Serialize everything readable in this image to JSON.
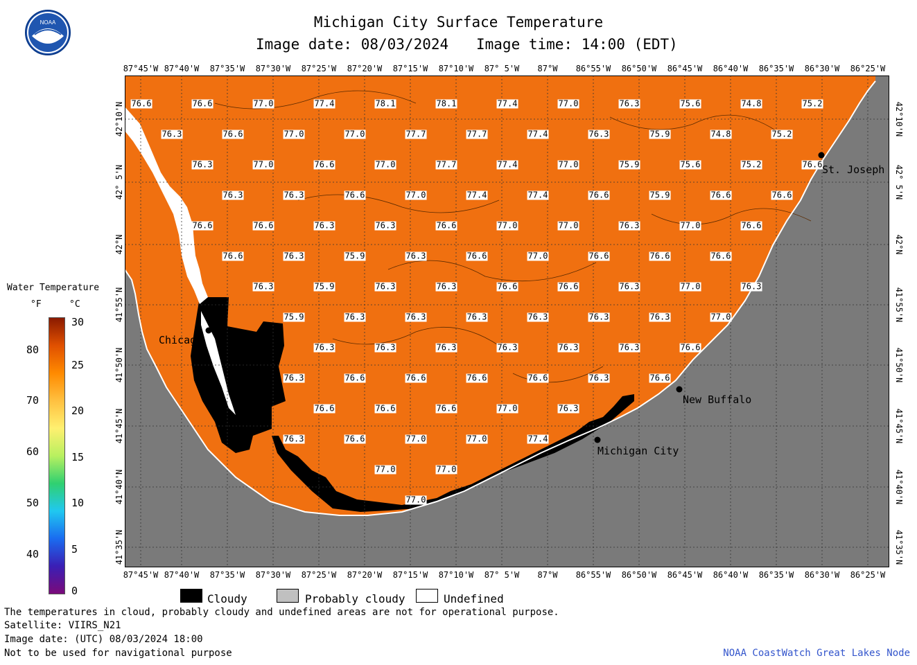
{
  "title": "Michigan City Surface Temperature",
  "image_date_line": "Image date: 08/03/2024",
  "image_time_line": "Image time: 14:00 (EDT)",
  "logo_text": "NOAA",
  "lon_labels": [
    "87°45'W",
    "87°40'W",
    "87°35'W",
    "87°30'W",
    "87°25'W",
    "87°20'W",
    "87°15'W",
    "87°10'W",
    "87° 5'W",
    "87°W",
    "86°55'W",
    "86°50'W",
    "86°45'W",
    "86°40'W",
    "86°35'W",
    "86°30'W",
    "86°25'W"
  ],
  "lat_labels": [
    "42°10'N",
    "42° 5'N",
    "42°N",
    "41°55'N",
    "41°50'N",
    "41°45'N",
    "41°40'N",
    "41°35'N"
  ],
  "cities": {
    "chicago": "Chicago",
    "st_joseph": "St. Joseph",
    "new_buffalo": "New Buffalo",
    "michigan_city": "Michigan City"
  },
  "legend": {
    "title": "Water Temperature",
    "unit_f": "°F",
    "unit_c": "°C",
    "f_ticks": [
      "80",
      "70",
      "60",
      "50",
      "40"
    ],
    "c_ticks": [
      "30",
      "25",
      "20",
      "15",
      "10",
      "5",
      "0"
    ],
    "gradient": [
      "#7a0a7a",
      "#3a1fb5",
      "#1a6cf0",
      "#20c8f0",
      "#30d070",
      "#b8f060",
      "#fff070",
      "#ffc040",
      "#ff8a00",
      "#e05000",
      "#8a1a00"
    ]
  },
  "cloud_legend": {
    "cloudy": "Cloudy",
    "probably_cloudy": "Probably cloudy",
    "undefined": "Undefined"
  },
  "colors": {
    "water": "#f07010",
    "land": "#7a7a7a",
    "cloud": "#000000",
    "undefined": "#ffffff",
    "credit": "#3355cc"
  },
  "footer": {
    "note": "The temperatures in cloud, probably cloudy and undefined areas are not for operational purpose.",
    "satellite": "Satellite: VIIRS_N21",
    "utc_date": "Image date: (UTC) 08/03/2024  18:00",
    "nav_warning": "Not to be used for navigational purpose",
    "credit": "NOAA CoastWatch Great Lakes Node"
  },
  "temp_rows": [
    [
      "76.6",
      "76.6",
      "77.0",
      "77.4",
      "78.1",
      "78.1",
      "77.4",
      "77.0",
      "76.3",
      "75.6",
      "74.8",
      "75.2"
    ],
    [
      "76.3",
      "76.6",
      "77.0",
      "77.0",
      "77.7",
      "77.7",
      "77.4",
      "76.3",
      "75.9",
      "74.8",
      "75.2"
    ],
    [
      "76.3",
      "77.0",
      "76.6",
      "77.0",
      "77.7",
      "77.4",
      "77.0",
      "75.9",
      "75.6",
      "75.2",
      "76.6"
    ],
    [
      "76.3",
      "76.3",
      "76.6",
      "77.0",
      "77.4",
      "77.4",
      "76.6",
      "75.9",
      "76.6",
      "76.6"
    ],
    [
      "76.6",
      "76.6",
      "76.3",
      "76.3",
      "76.6",
      "77.0",
      "77.0",
      "76.3",
      "77.0",
      "76.6"
    ],
    [
      "76.6",
      "76.3",
      "75.9",
      "76.3",
      "76.6",
      "77.0",
      "76.6",
      "76.6",
      "76.6"
    ],
    [
      "76.3",
      "75.9",
      "76.3",
      "76.3",
      "76.6",
      "76.6",
      "76.3",
      "77.0",
      "76.3"
    ],
    [
      "75.9",
      "76.3",
      "76.3",
      "76.3",
      "76.3",
      "76.3",
      "76.3",
      "77.0"
    ],
    [
      "76.3",
      "76.3",
      "76.3",
      "76.3",
      "76.3",
      "76.3",
      "76.6"
    ],
    [
      "76.3",
      "76.6",
      "76.6",
      "76.6",
      "76.6",
      "76.3",
      "76.6"
    ],
    [
      "76.6",
      "76.6",
      "76.6",
      "77.0",
      "76.3"
    ],
    [
      "76.3",
      "76.6",
      "77.0",
      "77.0",
      "77.4"
    ],
    [
      "77.0",
      "77.0"
    ],
    [
      "77.0"
    ]
  ]
}
